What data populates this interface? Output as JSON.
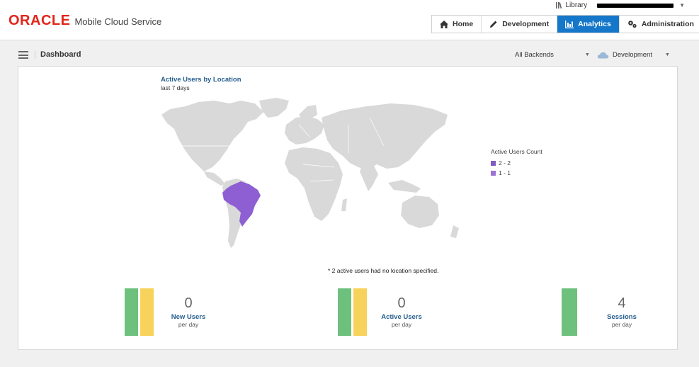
{
  "header": {
    "logo": "ORACLE",
    "product": "Mobile Cloud Service",
    "library_label": "Library",
    "nav_tabs": [
      {
        "label": "Home",
        "icon": "home-icon"
      },
      {
        "label": "Development",
        "icon": "pencil-icon"
      },
      {
        "label": "Analytics",
        "icon": "bar-chart-icon",
        "active": true
      },
      {
        "label": "Administration",
        "icon": "gears-icon"
      }
    ]
  },
  "subheader": {
    "title": "Dashboard",
    "backend_select": "All Backends",
    "environment_select": "Development"
  },
  "map": {
    "title": "Active Users by Location",
    "subtitle": "last 7 days",
    "legend_title": "Active Users Count",
    "legend": [
      {
        "label": "2 - 2",
        "color": "#7e5cc4"
      },
      {
        "label": "1 - 1",
        "color": "#9b74d8"
      }
    ],
    "highlighted_country": "Brazil",
    "highlight_color": "#8d5fd3",
    "land_color": "#d9d9d9",
    "note": "* 2 active users had no location specified."
  },
  "metrics": [
    {
      "value": "0",
      "label": "New Users",
      "sub": "per day",
      "bars": [
        "#6dc17d",
        "#f7d35b"
      ]
    },
    {
      "value": "0",
      "label": "Active Users",
      "sub": "per day",
      "bars": [
        "#6dc17d",
        "#f7d35b"
      ]
    },
    {
      "value": "4",
      "label": "Sessions",
      "sub": "per day",
      "bars": [
        "#6dc17d"
      ]
    }
  ],
  "colors": {
    "accent": "#1477c9",
    "brand_red": "#e2261b",
    "title_blue": "#265e8f"
  }
}
